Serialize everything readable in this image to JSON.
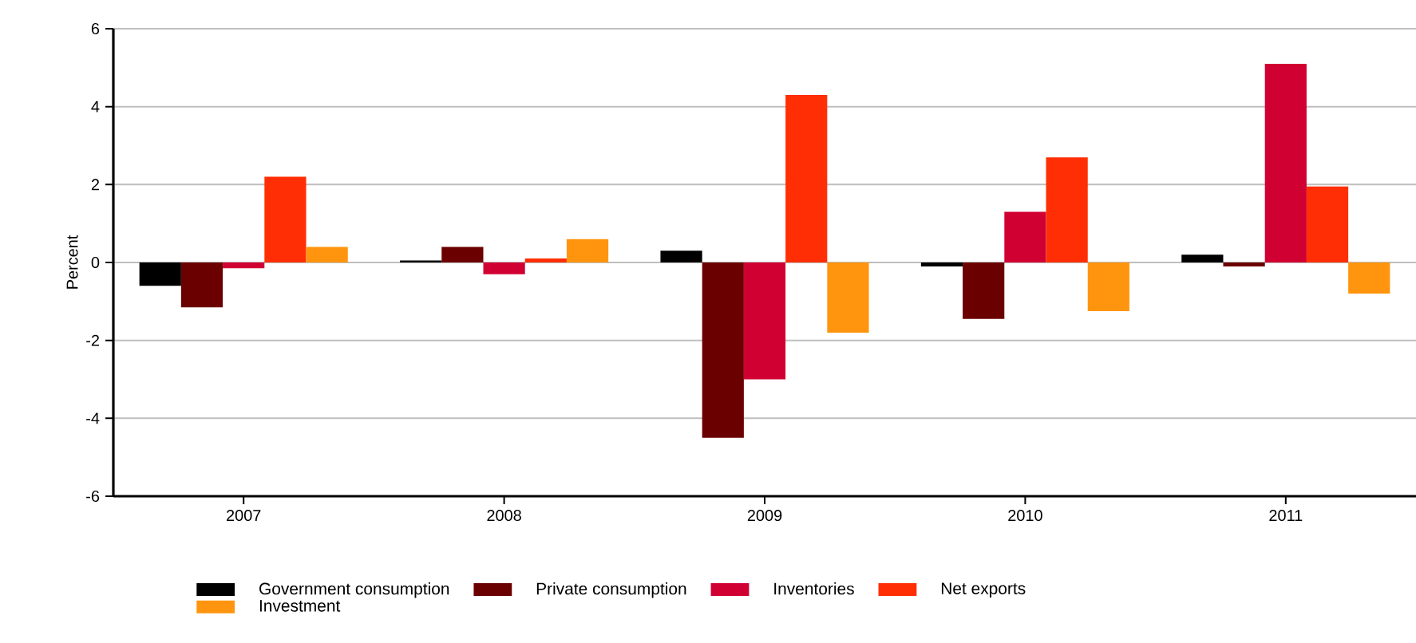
{
  "chart_data": {
    "type": "bar",
    "ylabel": "Percent",
    "categories": [
      "2007",
      "2008",
      "2009",
      "2010",
      "2011"
    ],
    "series": [
      {
        "name": "Government consumption",
        "color": "#000000",
        "values": [
          -0.6,
          0.05,
          0.3,
          -0.1,
          0.2
        ]
      },
      {
        "name": "Private consumption",
        "color": "#6b0000",
        "values": [
          -1.15,
          0.4,
          -4.5,
          -1.45,
          -0.1
        ]
      },
      {
        "name": "Inventories",
        "color": "#d10032",
        "values": [
          -0.15,
          -0.3,
          -3.0,
          1.3,
          5.1
        ]
      },
      {
        "name": "Net exports",
        "color": "#ff2e05",
        "values": [
          2.2,
          0.1,
          4.3,
          2.7,
          1.95
        ]
      },
      {
        "name": "Investment",
        "color": "#ff950e",
        "values": [
          0.4,
          0.6,
          -1.8,
          -1.25,
          -0.8
        ]
      }
    ],
    "ylim": [
      -6,
      6
    ],
    "yticks": [
      -6,
      -4,
      -2,
      0,
      2,
      4,
      6
    ],
    "grid": "y",
    "legend": "bottom"
  }
}
